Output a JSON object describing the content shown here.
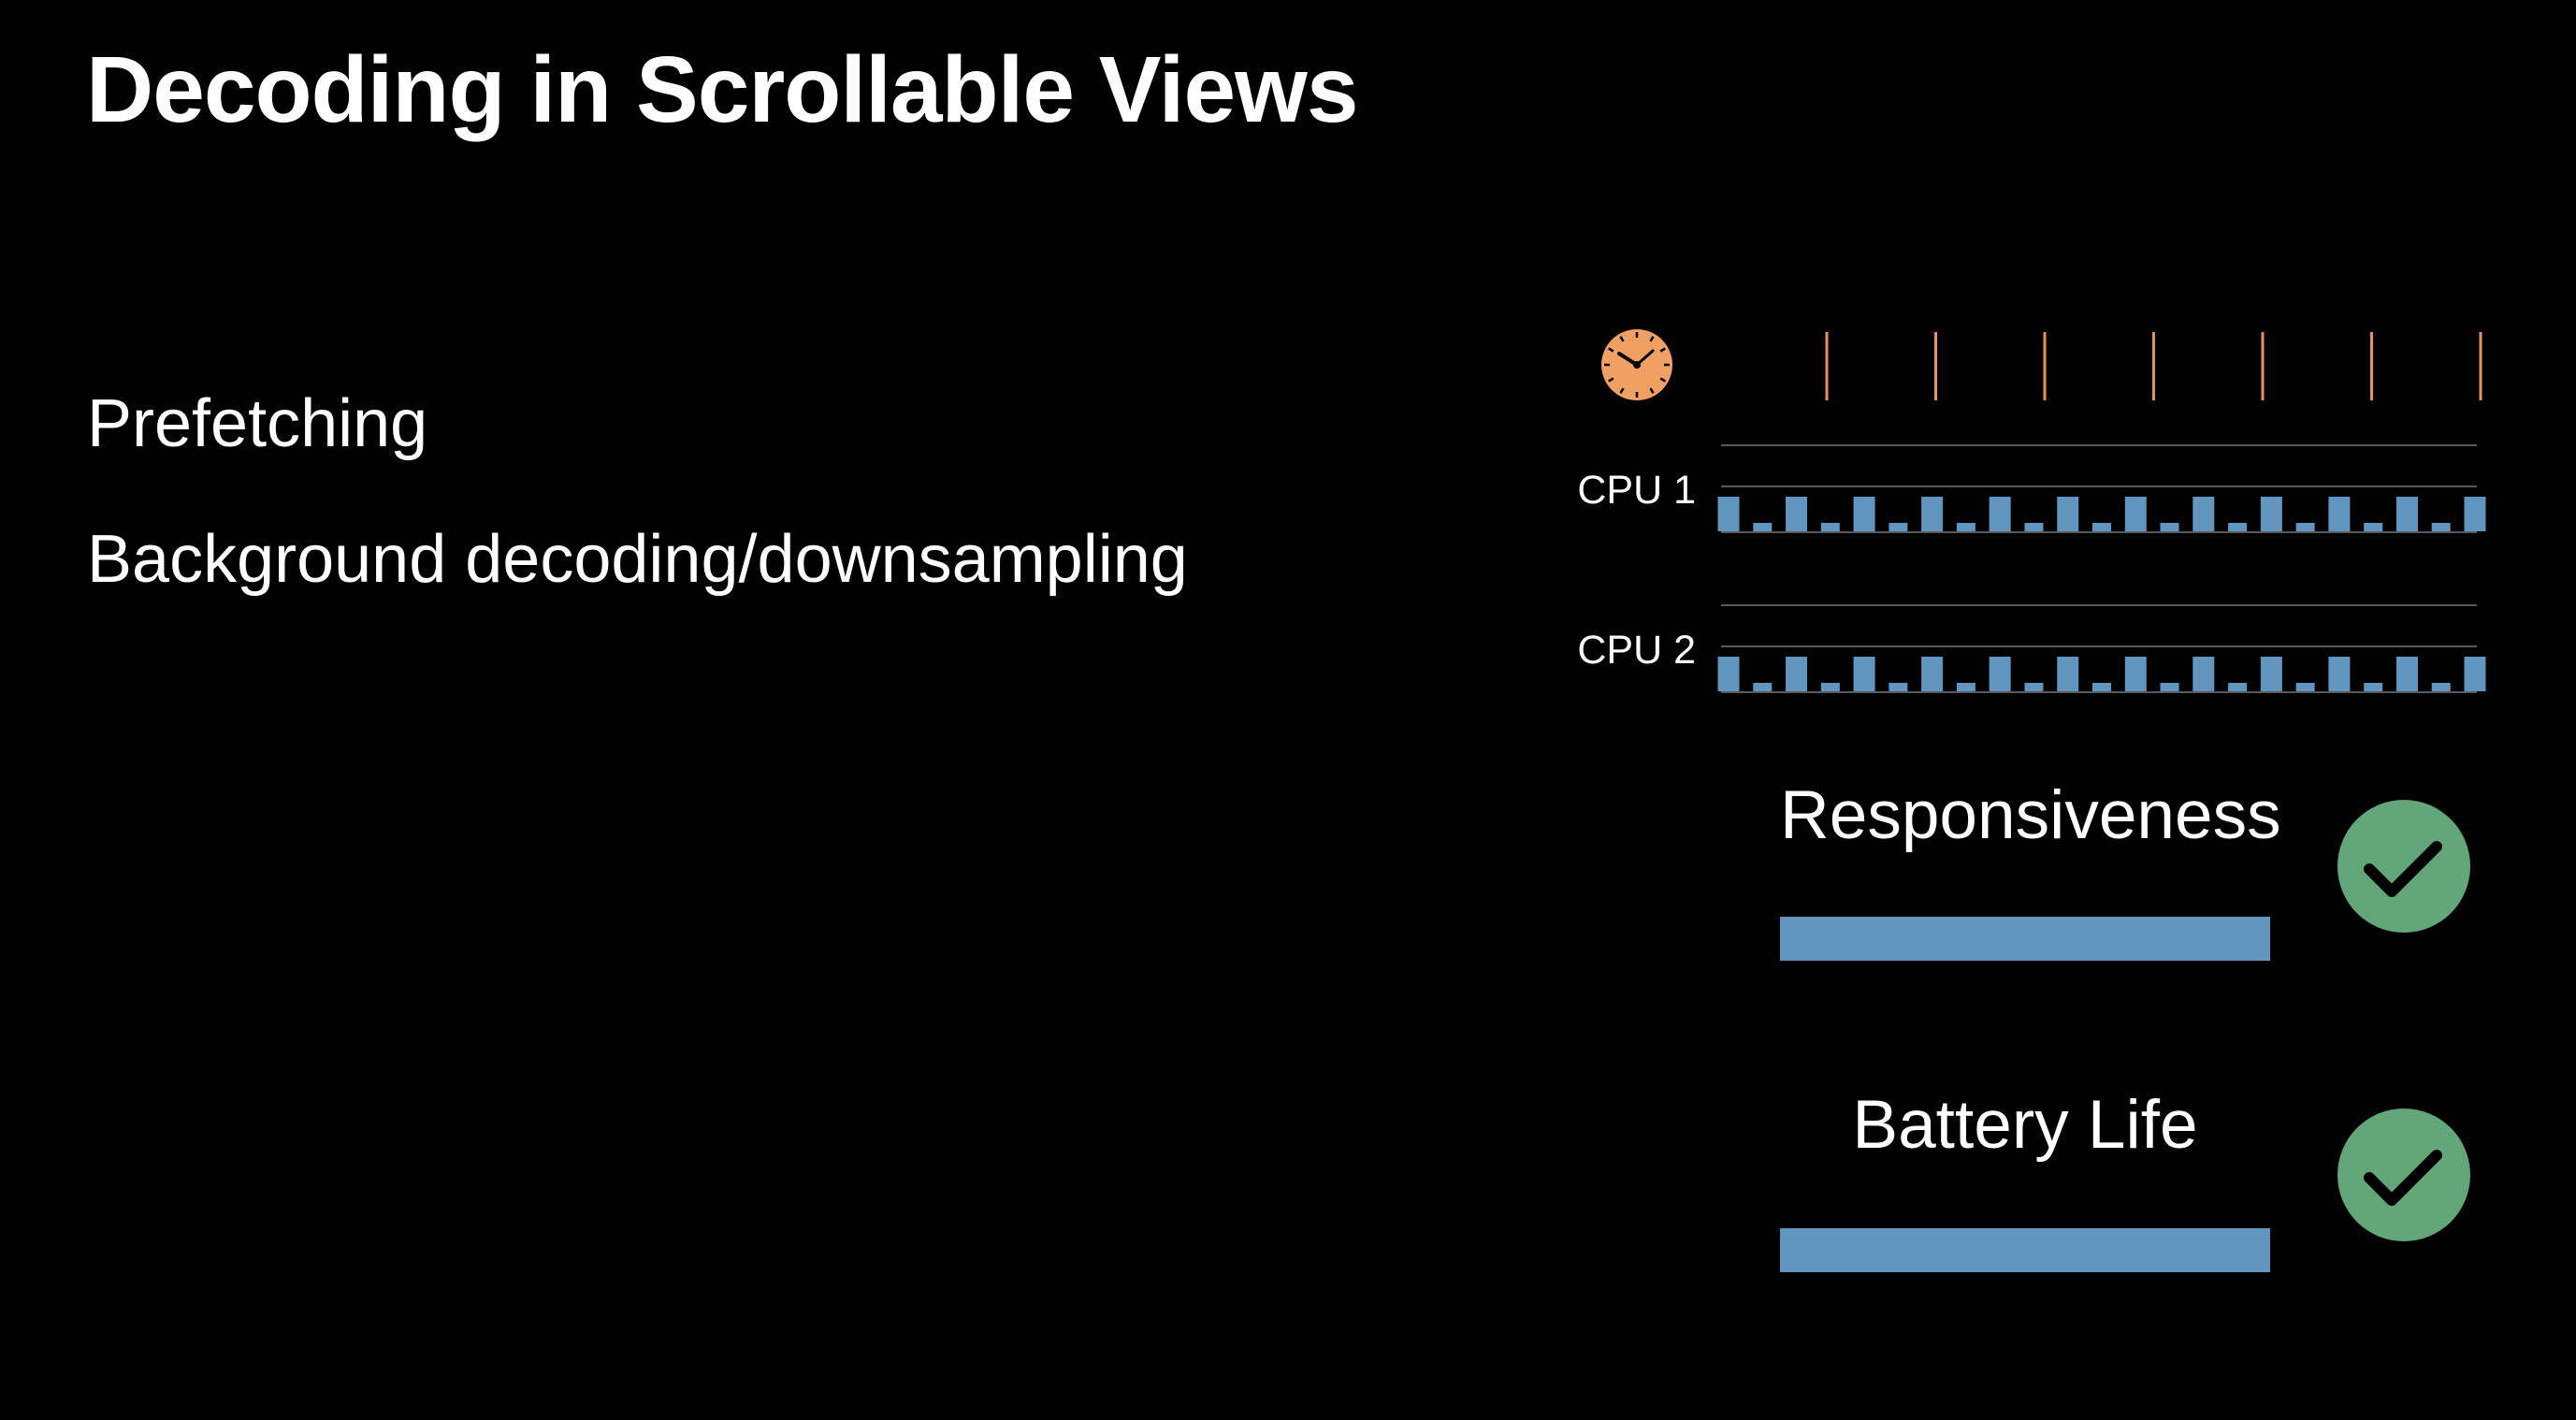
{
  "slide": {
    "title": "Decoding in Scrollable Views",
    "bullets": [
      "Prefetching",
      "Background decoding/downsampling"
    ]
  },
  "diagram": {
    "cpus": [
      {
        "label": "CPU 1",
        "task_levels": [
          "tall",
          "short",
          "tall",
          "short",
          "tall",
          "short",
          "tall",
          "short",
          "tall",
          "short",
          "tall",
          "short",
          "tall",
          "short",
          "tall",
          "short",
          "tall",
          "short",
          "tall",
          "short",
          "tall",
          "short",
          "tall"
        ]
      },
      {
        "label": "CPU 2",
        "task_levels": [
          "tall",
          "short",
          "tall",
          "short",
          "tall",
          "short",
          "tall",
          "short",
          "tall",
          "short",
          "tall",
          "short",
          "tall",
          "short",
          "tall",
          "short",
          "tall",
          "short",
          "tall",
          "short",
          "tall",
          "short",
          "tall"
        ]
      }
    ],
    "frame_deadline_count": 7,
    "metrics": [
      {
        "label": "Responsiveness",
        "status": "checkmark",
        "level": 1.0
      },
      {
        "label": "Battery Life",
        "status": "checkmark",
        "level": 1.0
      }
    ]
  },
  "colors": {
    "background": "#000000",
    "text": "#ffffff",
    "clock_orange": "#f0a062",
    "deadline_orange": "#e59358",
    "task_blue": "#6096bf",
    "metric_bar_blue": "#6396bf",
    "check_green": "#63a679",
    "timeline_line": "#5a5a5a"
  },
  "icons": {
    "clock": "clock-icon",
    "check": "checkmark-icon"
  }
}
